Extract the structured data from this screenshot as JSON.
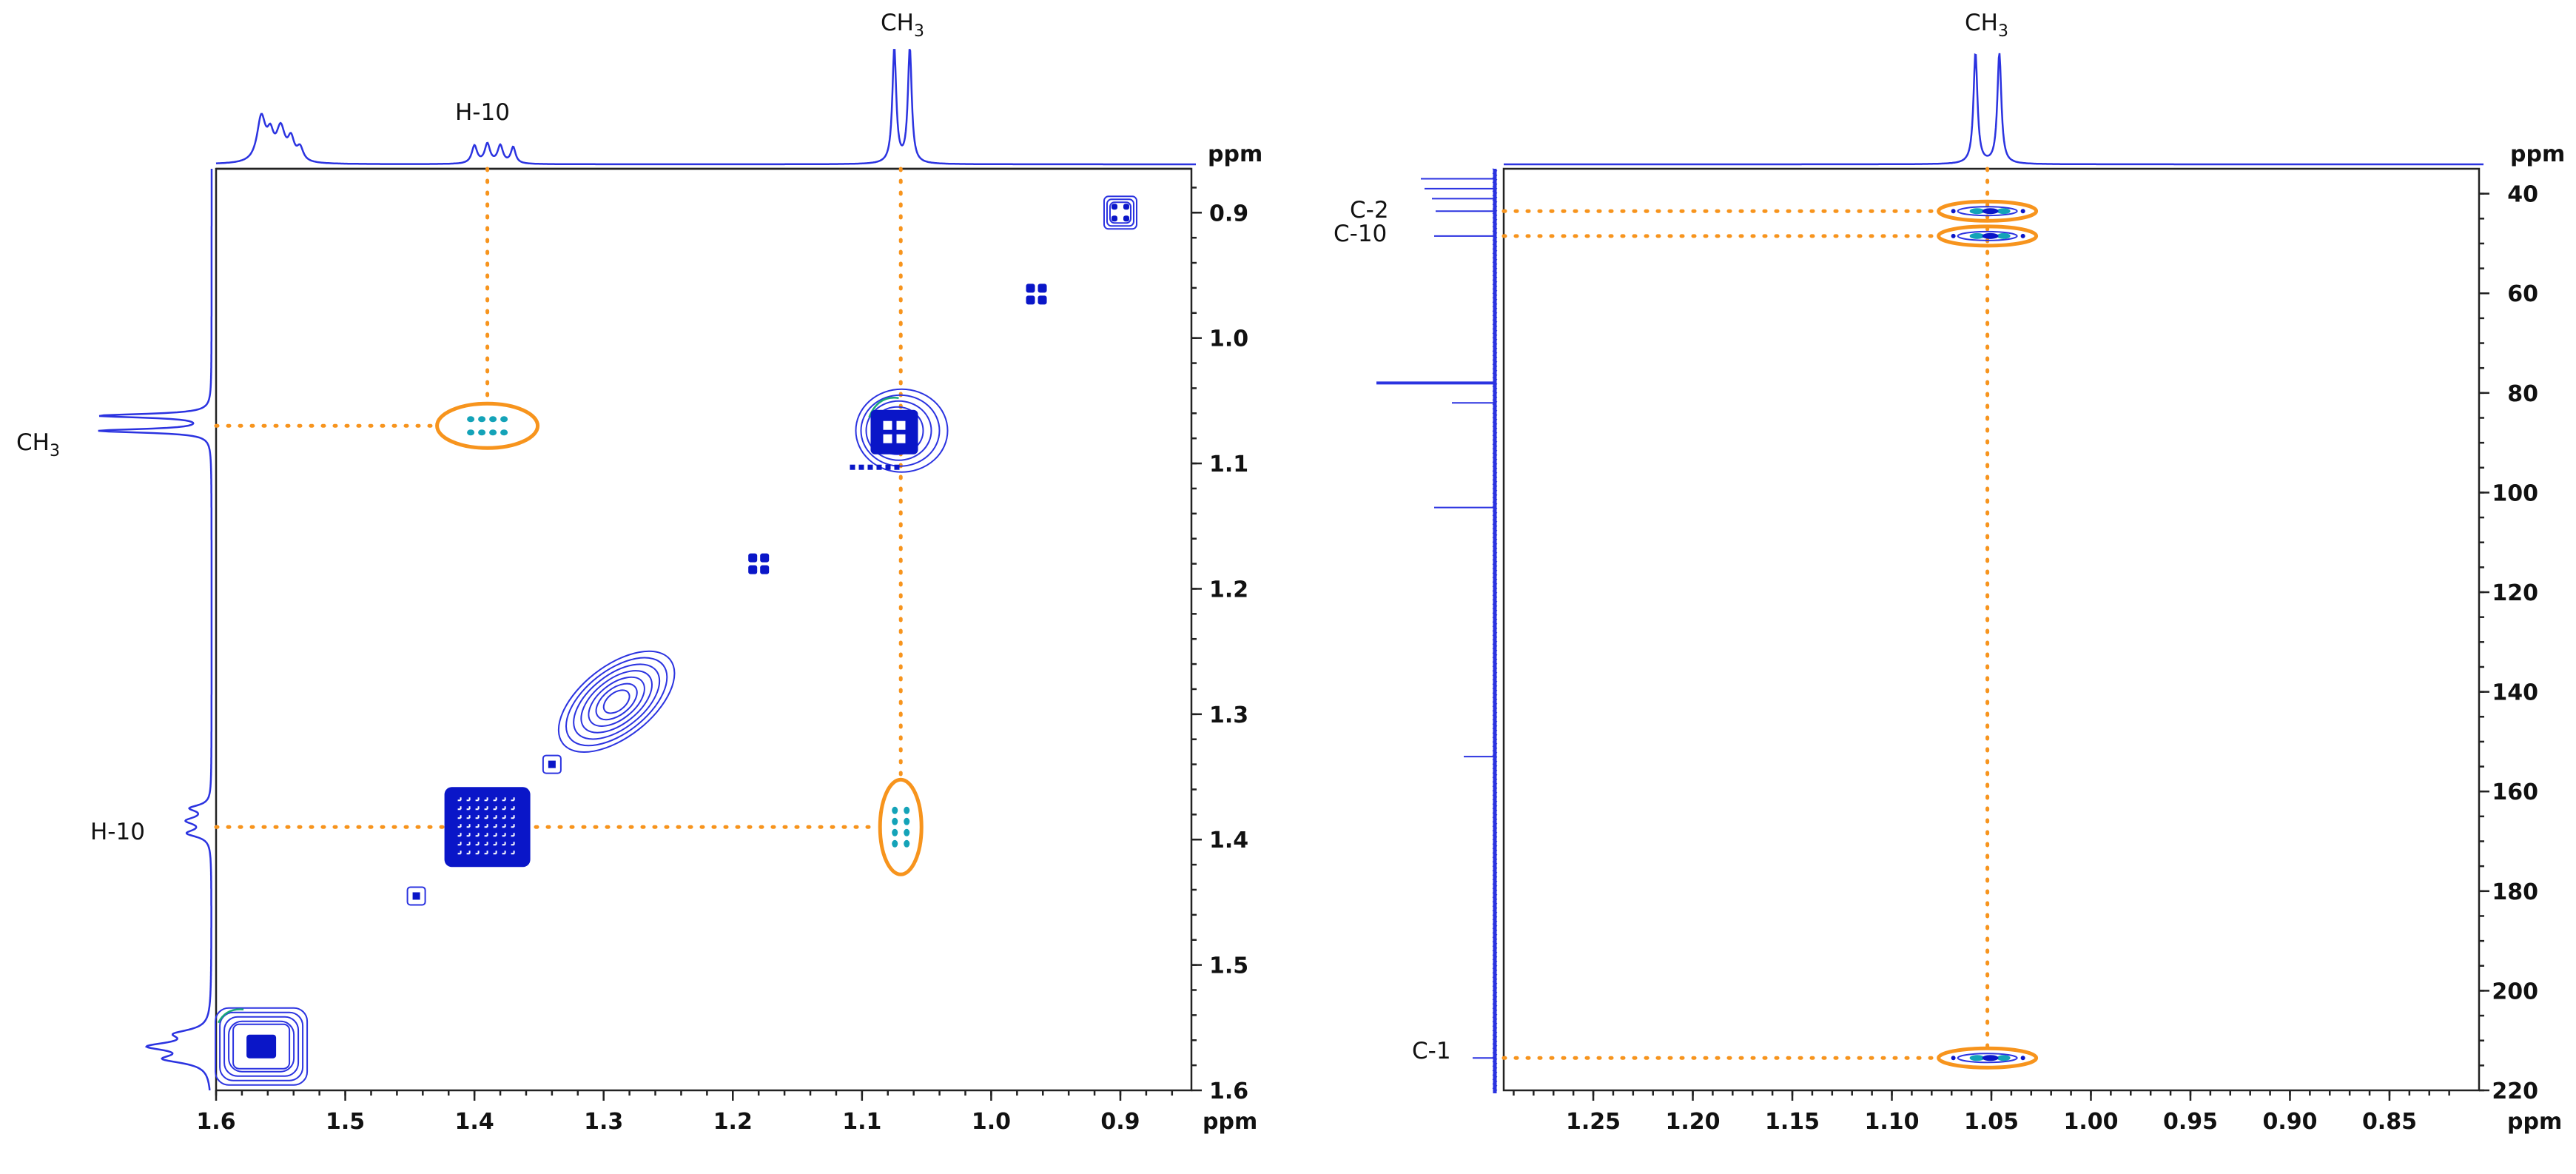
{
  "chart_data": [
    {
      "type": "scatter",
      "experiment_layout": "2D homonuclear correlation",
      "x_unit": "ppm",
      "y_unit": "ppm",
      "xlim": [
        1.6,
        0.845
      ],
      "ylim": [
        0.865,
        1.6
      ],
      "x_ticks": [
        "1.6",
        "1.5",
        "1.4",
        "1.3",
        "1.2",
        "1.1",
        "1.0",
        "0.9"
      ],
      "y_ticks": [
        "0.9",
        "1.0",
        "1.1",
        "1.2",
        "1.3",
        "1.4",
        "1.5",
        "1.6"
      ],
      "peak_labels": [
        "H-10",
        "CH3"
      ],
      "diagonal_peaks": [
        {
          "x": 0.9,
          "y": 0.9
        },
        {
          "x": 0.965,
          "y": 0.965
        },
        {
          "x": 1.075,
          "y": 1.075
        },
        {
          "x": 1.18,
          "y": 1.18
        },
        {
          "x": 1.29,
          "y": 1.29
        },
        {
          "x": 1.34,
          "y": 1.34
        },
        {
          "x": 1.39,
          "y": 1.39
        },
        {
          "x": 1.445,
          "y": 1.445
        },
        {
          "x": 1.565,
          "y": 1.565
        }
      ],
      "cross_peaks": [
        {
          "x": 1.39,
          "y": 1.07,
          "assignment": "H-10 / CH3"
        },
        {
          "x": 1.07,
          "y": 1.39,
          "assignment": "CH3 / H-10"
        }
      ],
      "top_projection_peaks": [
        1.565,
        1.55,
        1.535,
        1.39,
        1.075,
        1.065
      ],
      "side_projection_peaks": [
        1.07,
        1.39,
        1.565
      ]
    },
    {
      "type": "scatter",
      "experiment_layout": "2D heteronuclear correlation",
      "x_unit": "ppm",
      "y_unit": "ppm",
      "xlim": [
        1.295,
        0.805
      ],
      "ylim": [
        35,
        220
      ],
      "x_ticks": [
        "1.25",
        "1.20",
        "1.15",
        "1.10",
        "1.05",
        "1.00",
        "0.95",
        "0.90",
        "0.85"
      ],
      "y_ticks": [
        "40",
        "60",
        "80",
        "100",
        "120",
        "140",
        "160",
        "180",
        "200",
        "220"
      ],
      "peak_labels": [
        "CH3",
        "C-2",
        "C-10",
        "C-1"
      ],
      "cross_peaks": [
        {
          "x": 1.052,
          "y": 43.5,
          "assignment": "CH3 / C-2"
        },
        {
          "x": 1.052,
          "y": 48.5,
          "assignment": "CH3 / C-10"
        },
        {
          "x": 1.052,
          "y": 213.5,
          "assignment": "CH3 / C-1"
        }
      ],
      "top_projection_peaks": [
        1.058,
        1.046
      ],
      "side_projection_peaks": [
        37,
        39,
        41,
        43.5,
        48.5,
        78,
        82,
        103,
        153,
        213.5
      ]
    }
  ],
  "left_labels": {
    "top_peak": "H-10",
    "top_methyl": "CH",
    "side_methyl": "CH",
    "subscript": "3",
    "side_h10": "H-10",
    "x_unit": "ppm",
    "y_unit": "ppm"
  },
  "right_labels": {
    "top_methyl": "CH",
    "subscript": "3",
    "c2": "C-2",
    "c10": "C-10",
    "c1": "C-1",
    "x_unit": "ppm",
    "y_unit": "ppm"
  },
  "colors": {
    "trace": "#2b33e0",
    "blob": "#0a16c8",
    "guide": "#f7941d",
    "cyan": "#14a3b8",
    "green": "#1aa87a"
  }
}
